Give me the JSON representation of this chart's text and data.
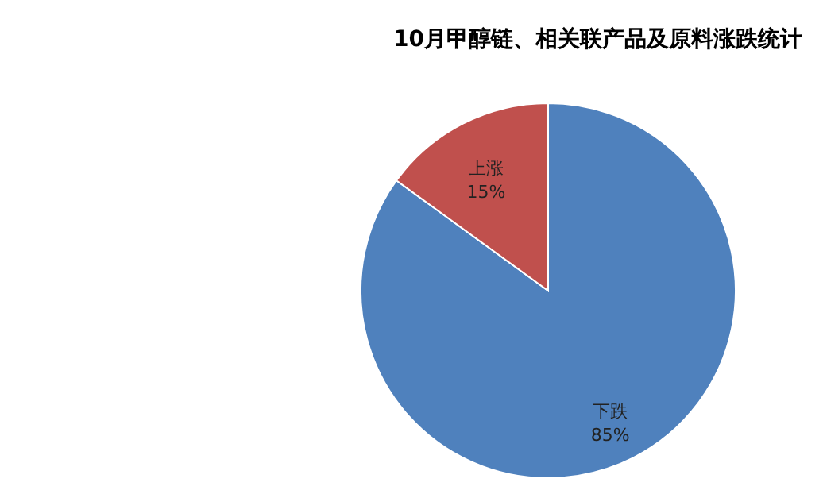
{
  "chart_data": {
    "type": "pie",
    "title": "10月甲醇链、相关联产品及原料涨跌统计",
    "categories": [
      "下跌",
      "上涨"
    ],
    "values": [
      85,
      15
    ],
    "colors": [
      "#4f81bd",
      "#c0504d"
    ],
    "value_labels": [
      "85%",
      "15%"
    ]
  }
}
